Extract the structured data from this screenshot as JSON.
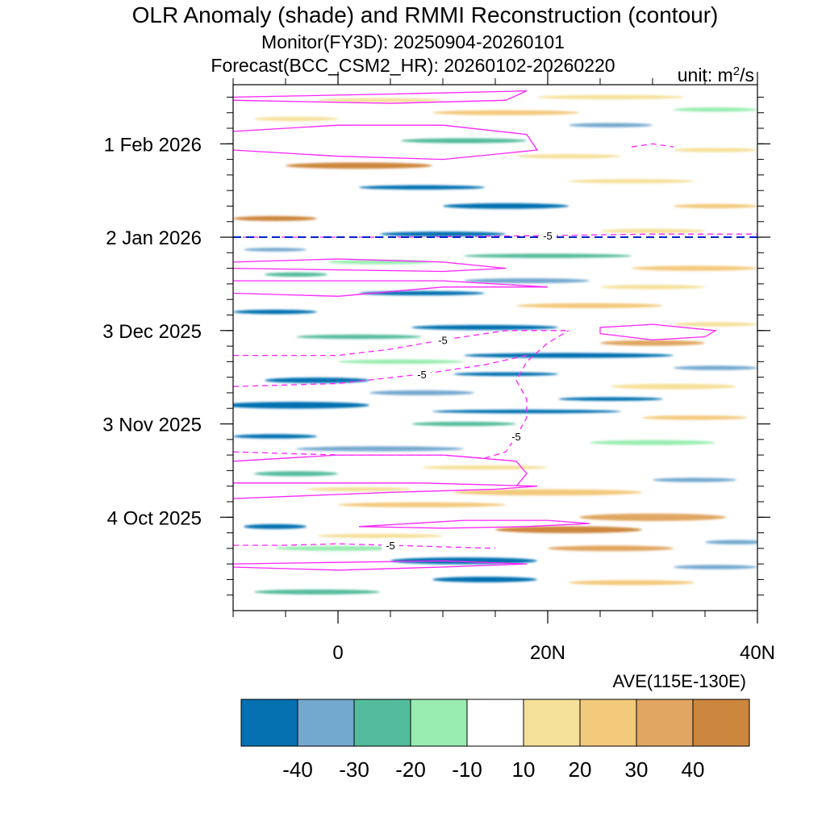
{
  "chart_data": {
    "type": "heatmap",
    "title": "OLR Anomaly (shade) and RMMI Reconstruction (contour)",
    "subtitle_monitor": "Monitor(FY3D): 20250904-20260101",
    "subtitle_forecast": "Forecast(BCC_CSM2_HR): 20260102-20260220",
    "unit_prefix": "unit: m",
    "unit_exp": "2",
    "unit_suffix": "/s",
    "xlabel": "AVE(115E-130E)",
    "x_range": [
      -10,
      40
    ],
    "x_ticks": [
      {
        "value": 0,
        "label": "0"
      },
      {
        "value": 20,
        "label": "20N"
      },
      {
        "value": 40,
        "label": "40N"
      }
    ],
    "y_range_days": [
      0,
      169
    ],
    "y_start_date": "2025-09-04",
    "y_ticks": [
      {
        "day": 30,
        "label": "4 Oct 2025"
      },
      {
        "day": 60,
        "label": "3 Nov 2025"
      },
      {
        "day": 90,
        "label": "3 Dec 2025"
      },
      {
        "day": 120,
        "label": "2 Jan 2026"
      },
      {
        "day": 150,
        "label": "1 Feb 2026"
      }
    ],
    "forecast_start_day": 120,
    "colorbar": {
      "levels": [
        "-40",
        "-30",
        "-20",
        "-10",
        "10",
        "20",
        "30",
        "40"
      ],
      "colors": [
        "#0570b0",
        "#74a9cf",
        "#54bc9c",
        "#98ecb0",
        "#ffffff",
        "#f5e09a",
        "#f3c97c",
        "#e0a662",
        "#cc863e"
      ]
    },
    "shading_blobs": [
      {
        "lat": -2,
        "day": 6,
        "w": 12,
        "h": 1.6,
        "cat": 2
      },
      {
        "lat": 14,
        "day": 10,
        "w": 10,
        "h": 1.8,
        "cat": 0
      },
      {
        "lat": 28,
        "day": 9,
        "w": 12,
        "h": 1.6,
        "cat": 6
      },
      {
        "lat": 36,
        "day": 14,
        "w": 8,
        "h": 1.4,
        "cat": 1
      },
      {
        "lat": 12,
        "day": 16,
        "w": 14,
        "h": 2.2,
        "cat": 0
      },
      {
        "lat": 0,
        "day": 20,
        "w": 12,
        "h": 1.6,
        "cat": 3
      },
      {
        "lat": 26,
        "day": 20,
        "w": 12,
        "h": 1.8,
        "cat": 7
      },
      {
        "lat": 38,
        "day": 22,
        "w": 6,
        "h": 1.4,
        "cat": 1
      },
      {
        "lat": 4,
        "day": 24,
        "w": 12,
        "h": 1.4,
        "cat": 5
      },
      {
        "lat": 22,
        "day": 26,
        "w": 14,
        "h": 2.2,
        "cat": 8
      },
      {
        "lat": -6,
        "day": 27,
        "w": 6,
        "h": 1.6,
        "cat": 0
      },
      {
        "lat": 30,
        "day": 30,
        "w": 14,
        "h": 2.4,
        "cat": 7
      },
      {
        "lat": 8,
        "day": 34,
        "w": 16,
        "h": 1.6,
        "cat": 6
      },
      {
        "lat": 20,
        "day": 38,
        "w": 18,
        "h": 2.0,
        "cat": 6
      },
      {
        "lat": 2,
        "day": 39,
        "w": 10,
        "h": 1.4,
        "cat": 5
      },
      {
        "lat": 34,
        "day": 42,
        "w": 8,
        "h": 1.4,
        "cat": 1
      },
      {
        "lat": -4,
        "day": 44,
        "w": 8,
        "h": 1.6,
        "cat": 2
      },
      {
        "lat": 14,
        "day": 46,
        "w": 12,
        "h": 1.4,
        "cat": 5
      },
      {
        "lat": 4,
        "day": 52,
        "w": 16,
        "h": 1.6,
        "cat": 1
      },
      {
        "lat": 30,
        "day": 54,
        "w": 12,
        "h": 1.6,
        "cat": 3
      },
      {
        "lat": -6,
        "day": 56,
        "w": 8,
        "h": 1.4,
        "cat": 0
      },
      {
        "lat": 12,
        "day": 60,
        "w": 10,
        "h": 1.4,
        "cat": 2
      },
      {
        "lat": 34,
        "day": 62,
        "w": 10,
        "h": 1.4,
        "cat": 6
      },
      {
        "lat": 18,
        "day": 64,
        "w": 18,
        "h": 1.2,
        "cat": 0
      },
      {
        "lat": -4,
        "day": 66,
        "w": 14,
        "h": 2.2,
        "cat": 0
      },
      {
        "lat": 26,
        "day": 68,
        "w": 10,
        "h": 1.2,
        "cat": 0
      },
      {
        "lat": 8,
        "day": 70,
        "w": 10,
        "h": 1.6,
        "cat": 1
      },
      {
        "lat": 32,
        "day": 72,
        "w": 12,
        "h": 1.8,
        "cat": 5
      },
      {
        "lat": -2,
        "day": 74,
        "w": 10,
        "h": 1.8,
        "cat": 0
      },
      {
        "lat": 16,
        "day": 76,
        "w": 10,
        "h": 1.2,
        "cat": 0
      },
      {
        "lat": 36,
        "day": 78,
        "w": 8,
        "h": 1.4,
        "cat": 1
      },
      {
        "lat": 6,
        "day": 80,
        "w": 12,
        "h": 1.4,
        "cat": 3
      },
      {
        "lat": 22,
        "day": 82,
        "w": 20,
        "h": 1.6,
        "cat": 0
      },
      {
        "lat": 30,
        "day": 86,
        "w": 10,
        "h": 1.8,
        "cat": 7
      },
      {
        "lat": 2,
        "day": 88,
        "w": 12,
        "h": 1.4,
        "cat": 2
      },
      {
        "lat": 14,
        "day": 91,
        "w": 14,
        "h": 1.6,
        "cat": 0
      },
      {
        "lat": 36,
        "day": 92,
        "w": 8,
        "h": 1.4,
        "cat": 5
      },
      {
        "lat": -6,
        "day": 96,
        "w": 8,
        "h": 1.4,
        "cat": 0
      },
      {
        "lat": 24,
        "day": 98,
        "w": 14,
        "h": 1.6,
        "cat": 6
      },
      {
        "lat": 8,
        "day": 102,
        "w": 12,
        "h": 1.4,
        "cat": 0
      },
      {
        "lat": 30,
        "day": 104,
        "w": 10,
        "h": 1.4,
        "cat": 5
      },
      {
        "lat": 18,
        "day": 106,
        "w": 12,
        "h": 1.6,
        "cat": 1
      },
      {
        "lat": -4,
        "day": 108,
        "w": 6,
        "h": 1.4,
        "cat": 2
      },
      {
        "lat": 34,
        "day": 110,
        "w": 12,
        "h": 1.6,
        "cat": 6
      },
      {
        "lat": 4,
        "day": 112,
        "w": 10,
        "h": 1.4,
        "cat": 3
      },
      {
        "lat": 20,
        "day": 114,
        "w": 16,
        "h": 1.4,
        "cat": 2
      },
      {
        "lat": -6,
        "day": 116,
        "w": 6,
        "h": 1.2,
        "cat": 1
      },
      {
        "lat": 10,
        "day": 121,
        "w": 12,
        "h": 1.6,
        "cat": 0
      },
      {
        "lat": 30,
        "day": 122,
        "w": 10,
        "h": 1.4,
        "cat": 5
      },
      {
        "lat": -6,
        "day": 126,
        "w": 8,
        "h": 1.6,
        "cat": 8
      },
      {
        "lat": 16,
        "day": 130,
        "w": 12,
        "h": 1.8,
        "cat": 0
      },
      {
        "lat": 36,
        "day": 130,
        "w": 8,
        "h": 1.4,
        "cat": 6
      },
      {
        "lat": 8,
        "day": 136,
        "w": 12,
        "h": 1.4,
        "cat": 0
      },
      {
        "lat": 28,
        "day": 138,
        "w": 12,
        "h": 1.4,
        "cat": 5
      },
      {
        "lat": 2,
        "day": 143,
        "w": 14,
        "h": 2.0,
        "cat": 8
      },
      {
        "lat": 22,
        "day": 146,
        "w": 10,
        "h": 1.4,
        "cat": 5
      },
      {
        "lat": 36,
        "day": 148,
        "w": 8,
        "h": 1.4,
        "cat": 5
      },
      {
        "lat": 12,
        "day": 151,
        "w": 12,
        "h": 1.6,
        "cat": 2
      },
      {
        "lat": 26,
        "day": 156,
        "w": 8,
        "h": 1.4,
        "cat": 1
      },
      {
        "lat": -4,
        "day": 158,
        "w": 8,
        "h": 1.4,
        "cat": 5
      },
      {
        "lat": 16,
        "day": 160,
        "w": 14,
        "h": 1.6,
        "cat": 6
      },
      {
        "lat": 36,
        "day": 161,
        "w": 8,
        "h": 1.4,
        "cat": 3
      },
      {
        "lat": 4,
        "day": 164,
        "w": 12,
        "h": 1.4,
        "cat": 5
      },
      {
        "lat": 26,
        "day": 165,
        "w": 14,
        "h": 1.4,
        "cat": 5
      }
    ],
    "contours": [
      {
        "label": "",
        "dashed": false,
        "points": [
          [
            -10,
            14
          ],
          [
            0,
            13
          ],
          [
            10,
            14
          ],
          [
            18,
            15
          ],
          [
            10,
            16
          ],
          [
            0,
            15.5
          ],
          [
            -10,
            15
          ]
        ]
      },
      {
        "label": "",
        "dashed": false,
        "points": [
          [
            2,
            27
          ],
          [
            12,
            29
          ],
          [
            20,
            29
          ],
          [
            24,
            28
          ],
          [
            18,
            27
          ],
          [
            10,
            26.5
          ],
          [
            2,
            27
          ]
        ]
      },
      {
        "label": "",
        "dashed": false,
        "points": [
          [
            -10,
            36
          ],
          [
            5,
            38
          ],
          [
            15,
            39
          ],
          [
            19,
            40
          ],
          [
            8,
            41
          ],
          [
            -10,
            41
          ]
        ]
      },
      {
        "label": "",
        "dashed": false,
        "points": [
          [
            -10,
            48
          ],
          [
            0,
            50
          ],
          [
            10,
            50
          ],
          [
            17,
            48
          ],
          [
            18,
            44
          ],
          [
            17,
            40
          ]
        ]
      },
      {
        "label": "",
        "dashed": false,
        "points": [
          [
            25,
            89
          ],
          [
            30,
            87
          ],
          [
            35,
            88
          ],
          [
            36,
            90
          ],
          [
            30,
            92
          ],
          [
            25,
            91
          ],
          [
            25,
            89
          ]
        ]
      },
      {
        "label": "",
        "dashed": false,
        "points": [
          [
            -10,
            102
          ],
          [
            0,
            101
          ],
          [
            10,
            104
          ],
          [
            20,
            104
          ],
          [
            10,
            106
          ],
          [
            0,
            106
          ],
          [
            -10,
            106
          ]
        ]
      },
      {
        "label": "",
        "dashed": false,
        "points": [
          [
            -10,
            112
          ],
          [
            0,
            113
          ],
          [
            10,
            112
          ],
          [
            16,
            110
          ],
          [
            10,
            109
          ],
          [
            -10,
            110
          ]
        ]
      },
      {
        "label": "",
        "dashed": false,
        "points": [
          [
            -10,
            154
          ],
          [
            0,
            156
          ],
          [
            10,
            156
          ],
          [
            18,
            153
          ],
          [
            19,
            148
          ],
          [
            10,
            145
          ],
          [
            0,
            146
          ],
          [
            -10,
            148
          ]
        ]
      },
      {
        "label": "",
        "dashed": false,
        "points": [
          [
            -10,
            165
          ],
          [
            5,
            166
          ],
          [
            18,
            167
          ],
          [
            16,
            164
          ],
          [
            5,
            163
          ],
          [
            -10,
            164
          ]
        ]
      },
      {
        "label": "-5",
        "dashed": true,
        "points": [
          [
            -10,
            21
          ],
          [
            -5,
            21
          ],
          [
            0,
            21.5
          ],
          [
            5,
            21
          ],
          [
            10,
            20.5
          ],
          [
            15,
            20
          ]
        ]
      },
      {
        "label": "-5",
        "dashed": true,
        "points": [
          [
            -10,
            51
          ],
          [
            0,
            50
          ],
          [
            5,
            50
          ],
          [
            10,
            50
          ],
          [
            14,
            49
          ],
          [
            16,
            51
          ],
          [
            17,
            56
          ],
          [
            18,
            62
          ],
          [
            18,
            68
          ],
          [
            17,
            74
          ],
          [
            18,
            80
          ],
          [
            20,
            86
          ],
          [
            22,
            90
          ]
        ]
      },
      {
        "label": "-5",
        "dashed": true,
        "points": [
          [
            -10,
            82
          ],
          [
            0,
            82
          ],
          [
            5,
            84
          ],
          [
            10,
            87
          ],
          [
            16,
            90
          ],
          [
            22,
            90
          ]
        ]
      },
      {
        "label": "-5",
        "dashed": true,
        "points": [
          [
            -10,
            72
          ],
          [
            0,
            73
          ],
          [
            8,
            76
          ],
          [
            14,
            79
          ],
          [
            18,
            82
          ]
        ]
      },
      {
        "label": "-5",
        "dashed": true,
        "points": [
          [
            -10,
            120
          ],
          [
            5,
            120
          ],
          [
            20,
            120.5
          ],
          [
            30,
            121
          ],
          [
            40,
            121
          ]
        ]
      },
      {
        "label": "",
        "dashed": true,
        "points": [
          [
            28,
            149
          ],
          [
            30,
            150
          ],
          [
            32,
            149
          ]
        ]
      }
    ]
  }
}
